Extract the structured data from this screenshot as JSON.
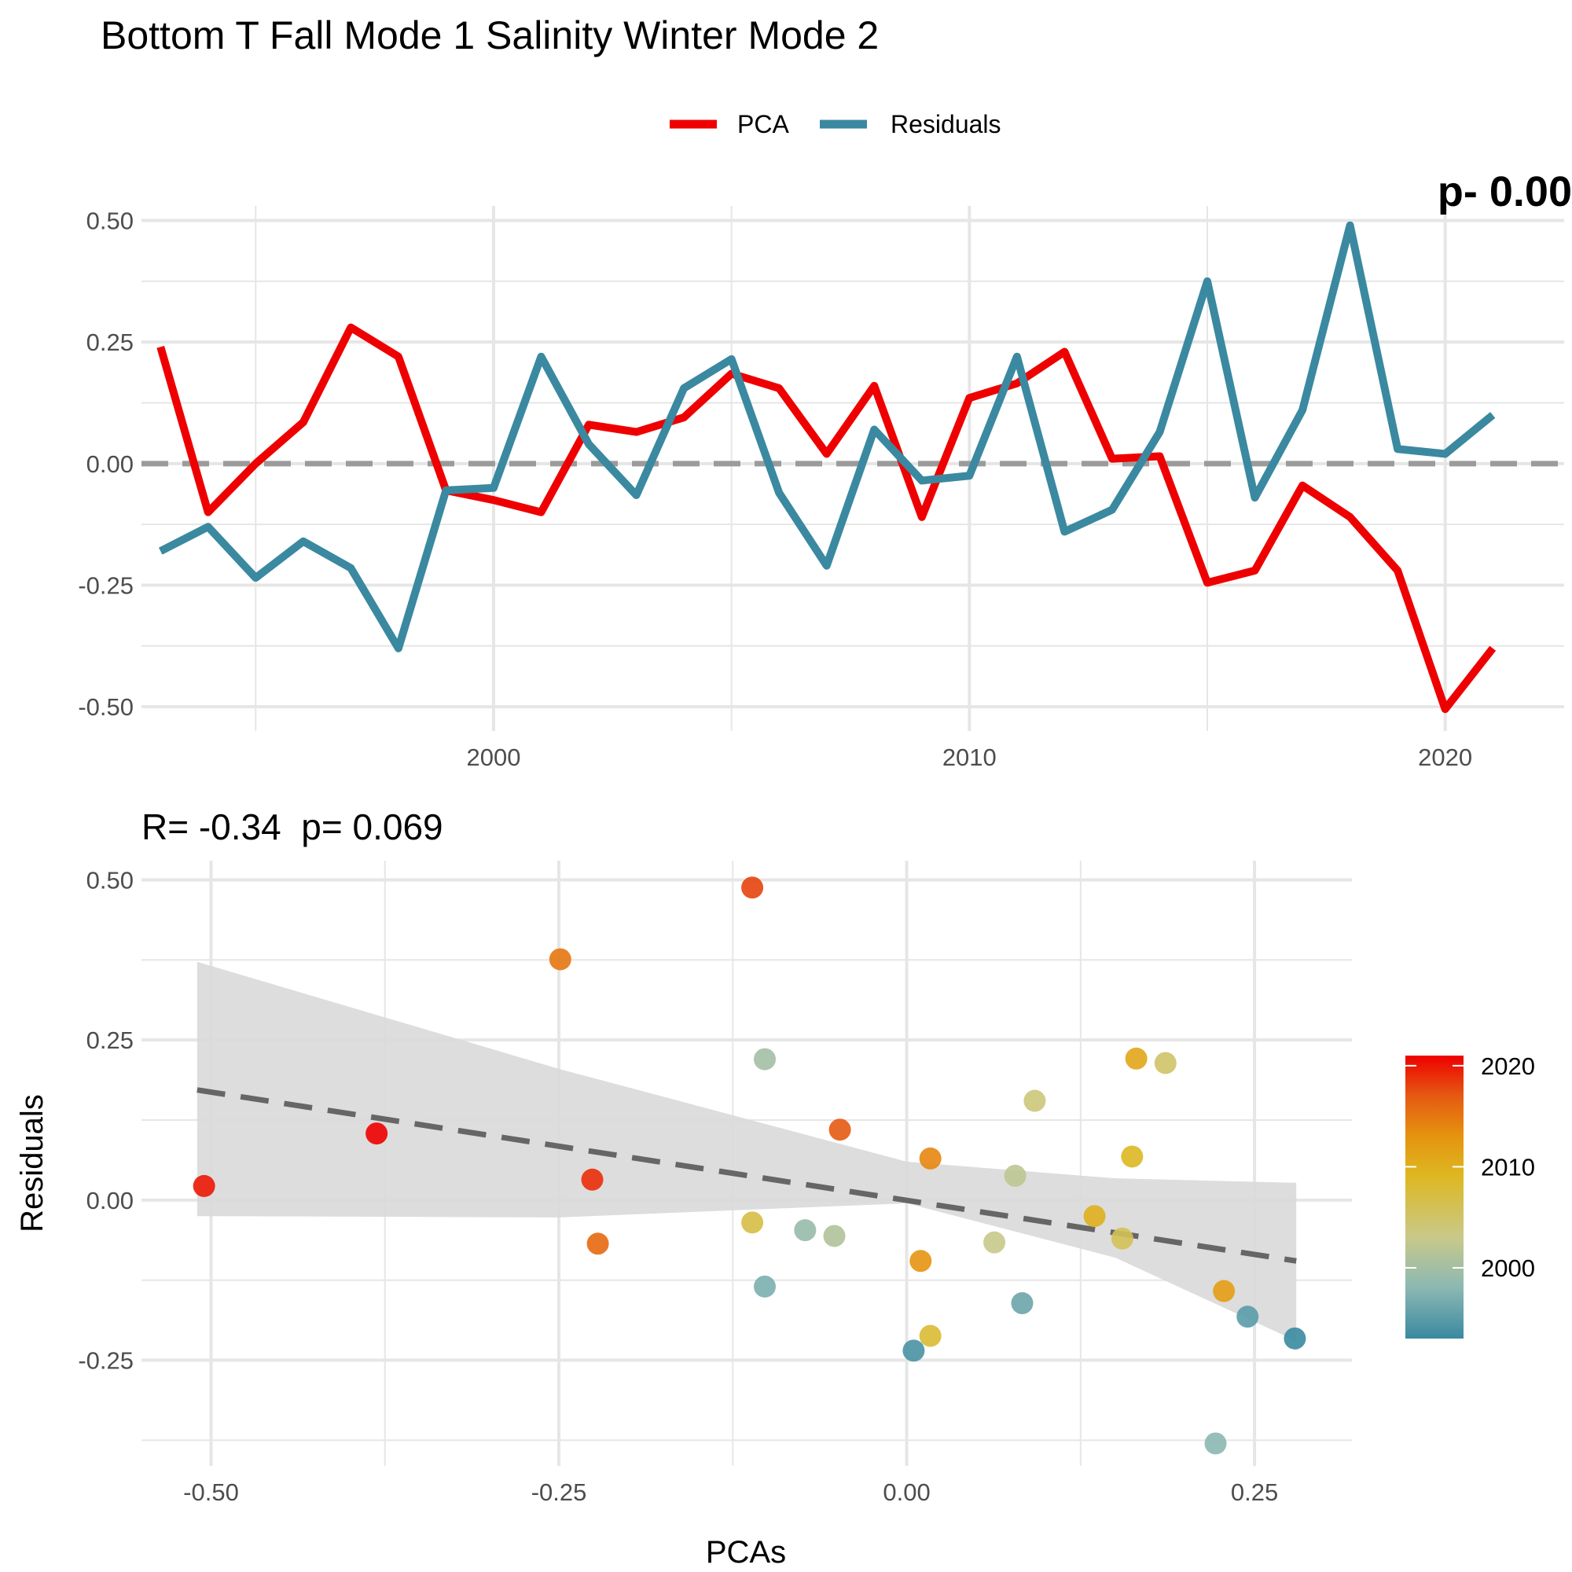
{
  "figure_title": "Bottom T Fall Mode 1 Salinity Winter Mode 2",
  "colors": {
    "pca": "#EE0000",
    "residuals": "#3A89A0",
    "zero_line": "#9B9B9B",
    "grid": "#E6E6E6",
    "fit_line": "#666666",
    "ribbon": "#D9D9D9"
  },
  "chart_data": [
    {
      "type": "line",
      "title": "",
      "clipped_annotation": "p- 0.00",
      "xlabel": "",
      "ylabel": "",
      "xlim": [
        1992.6,
        2022.5
      ],
      "ylim": [
        -0.55,
        0.53
      ],
      "x_ticks": [
        2000,
        2010,
        2020
      ],
      "x_tick_labels": [
        "2000",
        "2010",
        "2020"
      ],
      "y_ticks": [
        -0.5,
        -0.25,
        0.0,
        0.25,
        0.5
      ],
      "y_tick_labels": [
        "-0.50",
        "-0.25",
        "0.00",
        "0.25",
        "0.50"
      ],
      "grid": true,
      "reference_line": 0,
      "legend": {
        "position": "top",
        "entries": [
          "PCA",
          "Residuals"
        ]
      },
      "x": [
        1993,
        1994,
        1995,
        1996,
        1997,
        1998,
        1999,
        2000,
        2001,
        2002,
        2003,
        2004,
        2005,
        2006,
        2007,
        2008,
        2009,
        2010,
        2011,
        2012,
        2013,
        2014,
        2015,
        2016,
        2017,
        2018,
        2019,
        2020,
        2021
      ],
      "series": [
        {
          "name": "PCA",
          "color": "#EE0000",
          "values": [
            0.24,
            -0.1,
            0.0,
            0.085,
            0.28,
            0.22,
            -0.055,
            -0.075,
            -0.1,
            0.08,
            0.065,
            0.095,
            0.185,
            0.155,
            0.02,
            0.16,
            -0.11,
            0.135,
            0.165,
            0.23,
            0.01,
            0.015,
            -0.245,
            -0.22,
            -0.045,
            -0.11,
            -0.22,
            -0.505,
            -0.38
          ]
        },
        {
          "name": "Residuals",
          "color": "#3A89A0",
          "values": [
            -0.18,
            -0.13,
            -0.235,
            -0.16,
            -0.215,
            -0.38,
            -0.055,
            -0.05,
            0.22,
            0.04,
            -0.065,
            0.155,
            0.215,
            -0.06,
            -0.21,
            0.07,
            -0.035,
            -0.025,
            0.22,
            -0.14,
            -0.095,
            0.065,
            0.375,
            -0.07,
            0.11,
            0.49,
            0.03,
            0.02,
            0.1
          ]
        }
      ]
    },
    {
      "type": "scatter",
      "title": "R= -0.34  p= 0.069",
      "xlabel": "PCAs",
      "ylabel": "Residuals",
      "xlim": [
        -0.55,
        0.32
      ],
      "ylim": [
        -0.415,
        0.53
      ],
      "x_ticks": [
        -0.5,
        -0.25,
        0.0,
        0.25
      ],
      "x_tick_labels": [
        "-0.50",
        "-0.25",
        "0.00",
        "0.25"
      ],
      "y_ticks": [
        -0.25,
        0.0,
        0.25,
        0.5
      ],
      "y_tick_labels": [
        "-0.25",
        "0.00",
        "0.25",
        "0.50"
      ],
      "grid": true,
      "legend": {
        "position": "right",
        "title": "",
        "type": "colorbar",
        "range": [
          1993,
          2021
        ],
        "ticks": [
          2000,
          2010,
          2020
        ],
        "tick_labels": [
          "2000",
          "2010",
          "2020"
        ]
      },
      "colorscale": [
        [
          1993,
          "#3A89A0"
        ],
        [
          1998,
          "#8BB8B3"
        ],
        [
          2003,
          "#C8C98A"
        ],
        [
          2009,
          "#DDB822"
        ],
        [
          2013,
          "#E5940F"
        ],
        [
          2017,
          "#E55A12"
        ],
        [
          2021,
          "#EE0000"
        ]
      ],
      "fit": {
        "type": "linear",
        "style": "dashed",
        "x": [
          -0.51,
          0.28
        ],
        "y": [
          0.172,
          -0.095
        ]
      },
      "confidence_band": {
        "x": [
          -0.51,
          -0.25,
          0.0,
          0.15,
          0.28
        ],
        "lower": [
          -0.025,
          -0.027,
          -0.005,
          -0.09,
          -0.22
        ],
        "upper": [
          0.372,
          0.205,
          0.06,
          0.034,
          0.027
        ]
      },
      "points": [
        {
          "year": 1993,
          "x": 0.279,
          "y": -0.216
        },
        {
          "year": 1994,
          "x": 0.005,
          "y": -0.235
        },
        {
          "year": 1995,
          "x": 0.245,
          "y": -0.182
        },
        {
          "year": 1996,
          "x": 0.083,
          "y": -0.161
        },
        {
          "year": 1997,
          "x": -0.102,
          "y": -0.135
        },
        {
          "year": 1998,
          "x": 0.222,
          "y": -0.38
        },
        {
          "year": 1999,
          "x": -0.073,
          "y": -0.047
        },
        {
          "year": 2000,
          "x": -0.102,
          "y": 0.22
        },
        {
          "year": 2001,
          "x": -0.052,
          "y": -0.056
        },
        {
          "year": 2002,
          "x": 0.078,
          "y": 0.038
        },
        {
          "year": 2003,
          "x": 0.063,
          "y": -0.066
        },
        {
          "year": 2004,
          "x": 0.092,
          "y": 0.155
        },
        {
          "year": 2005,
          "x": 0.186,
          "y": 0.214
        },
        {
          "year": 2006,
          "x": 0.155,
          "y": -0.06
        },
        {
          "year": 2007,
          "x": -0.111,
          "y": -0.035
        },
        {
          "year": 2008,
          "x": 0.017,
          "y": -0.212
        },
        {
          "year": 2009,
          "x": 0.162,
          "y": 0.068
        },
        {
          "year": 2010,
          "x": 0.135,
          "y": -0.025
        },
        {
          "year": 2011,
          "x": 0.165,
          "y": 0.221
        },
        {
          "year": 2012,
          "x": 0.228,
          "y": -0.142
        },
        {
          "year": 2013,
          "x": 0.01,
          "y": -0.095
        },
        {
          "year": 2014,
          "x": 0.017,
          "y": 0.065
        },
        {
          "year": 2015,
          "x": -0.249,
          "y": 0.376
        },
        {
          "year": 2016,
          "x": -0.222,
          "y": -0.068
        },
        {
          "year": 2017,
          "x": -0.048,
          "y": 0.11
        },
        {
          "year": 2018,
          "x": -0.111,
          "y": 0.488
        },
        {
          "year": 2019,
          "x": -0.226,
          "y": 0.032
        },
        {
          "year": 2020,
          "x": -0.505,
          "y": 0.022
        },
        {
          "year": 2021,
          "x": -0.381,
          "y": 0.104
        }
      ]
    }
  ]
}
